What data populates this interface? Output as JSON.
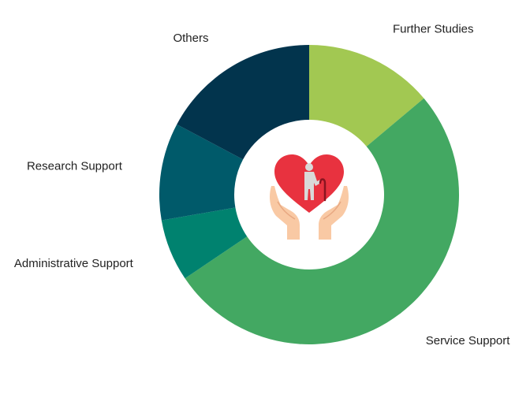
{
  "chart_data": {
    "type": "pie",
    "categories": [
      "Further Studies",
      "Service Support",
      "Administrative Support",
      "Research Support",
      "Others"
    ],
    "values": [
      14.5,
      54,
      7,
      11,
      18
    ],
    "colors": [
      "#a2c852",
      "#43a862",
      "#00826f",
      "#005a6a",
      "#02344d"
    ],
    "hole": 0.5,
    "center_icon": "hands-holding-heart-elderly-icon"
  }
}
